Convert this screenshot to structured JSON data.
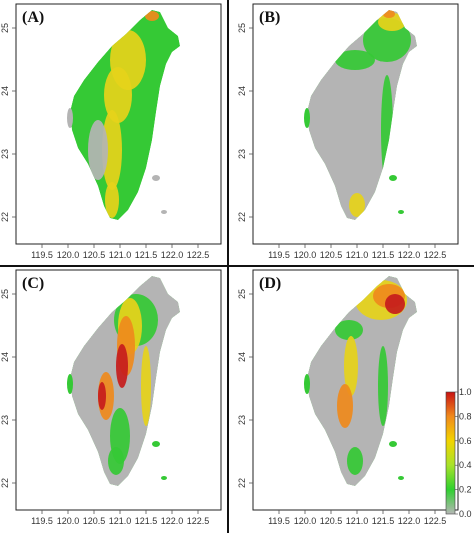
{
  "figure": {
    "panels": [
      {
        "id": "A",
        "label": "(A)",
        "pattern": "mixed"
      },
      {
        "id": "B",
        "label": "(B)",
        "pattern": "north-east"
      },
      {
        "id": "C",
        "label": "(C)",
        "pattern": "central-spine"
      },
      {
        "id": "D",
        "label": "(D)",
        "pattern": "north-hot"
      }
    ],
    "x_ticks": [
      "119.5",
      "120.0",
      "120.5",
      "121.0",
      "121.5",
      "122.0",
      "122.5"
    ],
    "y_ticks": [
      "25",
      "24",
      "23",
      "22"
    ],
    "legend": {
      "ticks": [
        "1.0",
        "0.8",
        "0.6",
        "0.4",
        "0.2",
        "0.0"
      ],
      "colors": [
        "#b6b6b6",
        "#2fd02f",
        "#a8e22a",
        "#f2d400",
        "#f08a1c",
        "#c81212"
      ]
    },
    "colors": {
      "land_low": "#b4b4b4",
      "green": "#35c935",
      "yellow": "#e6d31a",
      "orange": "#ef8a1c",
      "red": "#c61c1c"
    }
  }
}
